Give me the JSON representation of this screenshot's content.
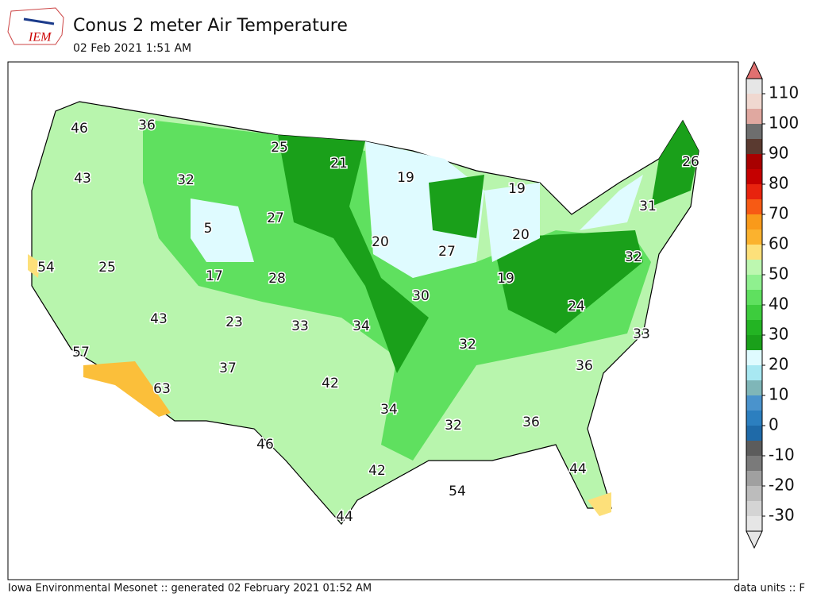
{
  "header": {
    "title": "Conus 2 meter Air Temperature",
    "subtitle": "02 Feb 2021 1:51 AM",
    "logo": "IEM"
  },
  "map": {
    "values": [
      46,
      36,
      25,
      21,
      19,
      19,
      26,
      43,
      32,
      27,
      5,
      20,
      27,
      20,
      31,
      54,
      25,
      17,
      28,
      19,
      32,
      30,
      24,
      43,
      23,
      33,
      34,
      32,
      33,
      57,
      37,
      42,
      36,
      63,
      34,
      32,
      36,
      46,
      42,
      44,
      54,
      44
    ]
  },
  "colorbar": {
    "lim": [
      -35,
      115
    ],
    "ticks": [
      -30,
      -20,
      -10,
      0,
      10,
      20,
      30,
      40,
      50,
      60,
      70,
      80,
      90,
      100,
      110
    ],
    "bins": [
      -35,
      -30,
      -25,
      -20,
      -15,
      -10,
      -5,
      0,
      5,
      10,
      15,
      20,
      25,
      30,
      35,
      40,
      45,
      50,
      55,
      60,
      65,
      70,
      75,
      80,
      85,
      90,
      95,
      100,
      105,
      110,
      115
    ],
    "colors": [
      "#e6e6e6",
      "#d4d4d4",
      "#bcbcbc",
      "#a0a0a0",
      "#7a7a7a",
      "#5c5c5c",
      "#1f6aa8",
      "#2c7fbf",
      "#4a93cc",
      "#7fb6b8",
      "#a8e8f2",
      "#dffbff",
      "#1aa01a",
      "#23b423",
      "#3dcc3d",
      "#5fe05f",
      "#8ff08f",
      "#bdf7b0",
      "#fde07a",
      "#fbb22e",
      "#f99a1a",
      "#f75a14",
      "#e8230e",
      "#c50000",
      "#a80000",
      "#5a3a30",
      "#6e6e6e",
      "#e0a8a0",
      "#f0d8d0",
      "#e6e6e6",
      "#e07070"
    ]
  },
  "footer": {
    "left": "Iowa Environmental Mesonet :: generated 02 February 2021 01:52 AM",
    "right": "data units :: F"
  }
}
